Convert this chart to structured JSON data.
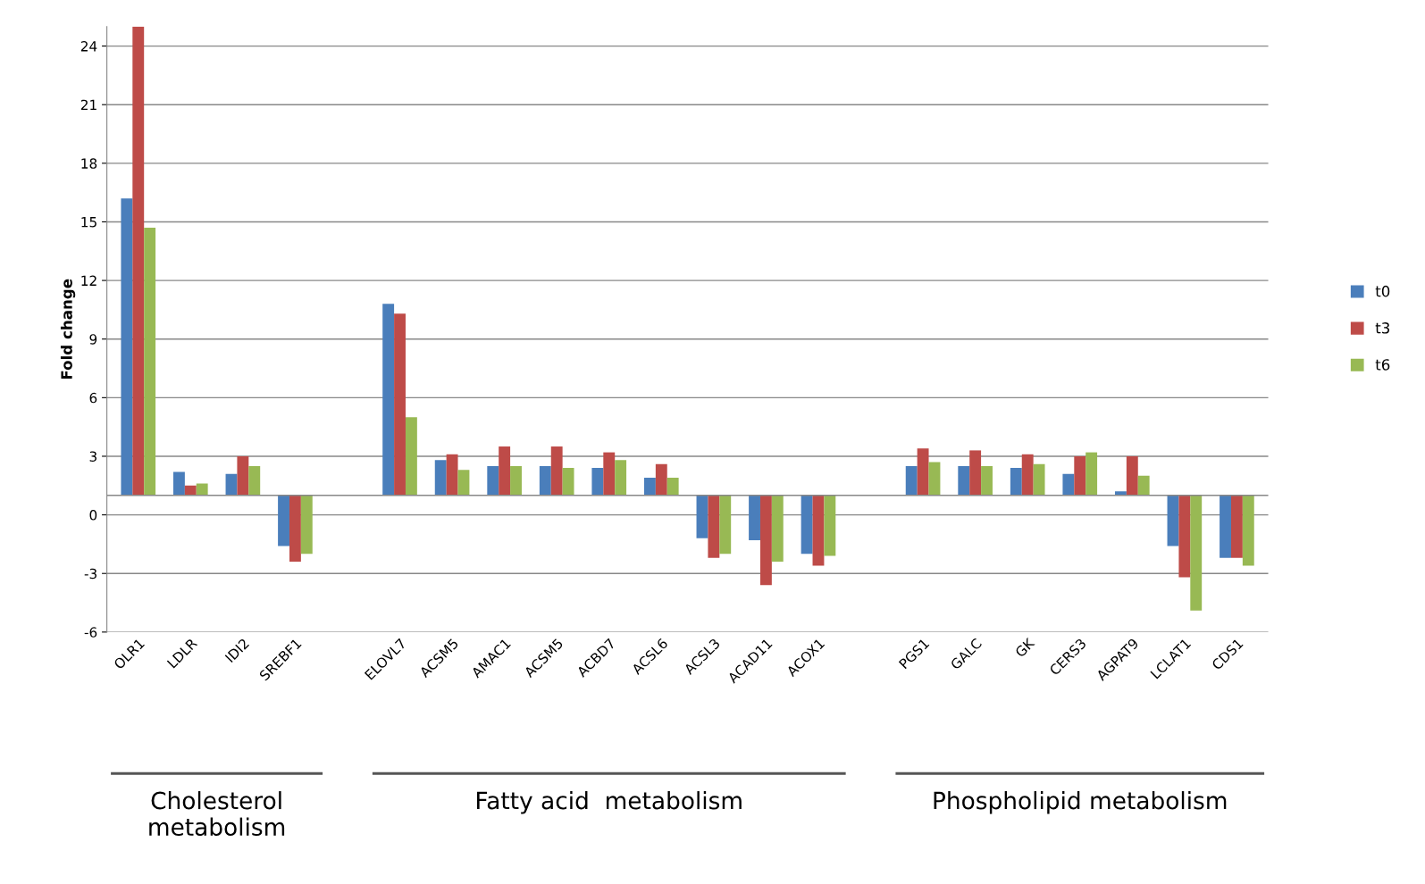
{
  "chart_data": {
    "type": "bar",
    "ylabel": "Fold change",
    "categories": [
      "OLR1",
      "LDLR",
      "IDI2",
      "SREBF1",
      null,
      "ELOVL7",
      "ACSM5",
      "AMAC1",
      "ACSM5",
      "ACBD7",
      "ACSL6",
      "ACSL3",
      "ACAD11",
      "ACOX1",
      null,
      "PGS1",
      "GALC",
      "GK",
      "CERS3",
      "AGPAT9",
      "LCLAT1",
      "CDS1"
    ],
    "series": [
      {
        "name": "t0",
        "color": "#4a7ebb",
        "base": [
          1,
          1,
          1,
          1,
          null,
          1,
          1,
          1,
          1,
          1,
          1,
          1,
          1,
          1,
          null,
          1,
          1,
          1,
          1,
          1,
          1,
          1
        ],
        "values": [
          15.2,
          1.2,
          1.1,
          -2.6,
          null,
          9.8,
          1.8,
          1.5,
          1.5,
          1.4,
          0.9,
          -2.2,
          -2.3,
          -3.0,
          null,
          1.5,
          1.5,
          1.4,
          1.1,
          0.2,
          -2.6,
          -3.2
        ]
      },
      {
        "name": "t3",
        "color": "#be4b48",
        "base": [
          1,
          1,
          1,
          1,
          null,
          1,
          1,
          1,
          1,
          1,
          1,
          1,
          1,
          1,
          null,
          1,
          1,
          1,
          1,
          1,
          1,
          1
        ],
        "values": [
          24.0,
          0.5,
          2.0,
          -3.4,
          null,
          9.3,
          2.1,
          2.5,
          2.5,
          2.2,
          1.6,
          -3.2,
          -4.6,
          -3.6,
          null,
          2.4,
          2.3,
          2.1,
          2.0,
          2.0,
          -4.2,
          -3.2
        ]
      },
      {
        "name": "t6",
        "color": "#98b954",
        "base": [
          1,
          1,
          1,
          1,
          null,
          1,
          1,
          1,
          1,
          1,
          1,
          1,
          1,
          1,
          null,
          1,
          1,
          1,
          1,
          1,
          1,
          1
        ],
        "values": [
          13.7,
          0.6,
          1.5,
          -3.0,
          null,
          4.0,
          1.3,
          1.5,
          1.4,
          1.8,
          0.9,
          -3.0,
          -3.4,
          -3.1,
          null,
          1.7,
          1.5,
          1.6,
          2.2,
          1.0,
          -5.9,
          -3.6
        ]
      }
    ],
    "ylim": [
      -6,
      25
    ],
    "yticks": [
      -6,
      -3,
      0,
      3,
      6,
      9,
      12,
      15,
      18,
      21,
      24
    ],
    "grid": "y",
    "legend": "right",
    "annotations": [
      "Cholesterol\nmetabolism",
      "Fatty acid  metabolism",
      "Phospholipid metabolism"
    ]
  }
}
